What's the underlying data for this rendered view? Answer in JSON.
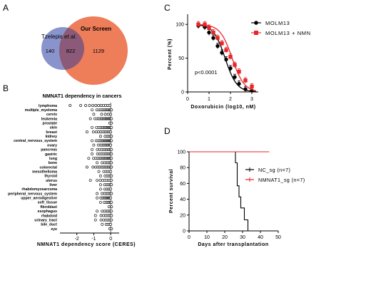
{
  "panels": {
    "A": "A",
    "B": "B",
    "C": "C",
    "D": "D"
  },
  "chart_data": [
    {
      "type": "venn",
      "sets": [
        {
          "name": "Tzelepis et al.",
          "name_plain": "Tzelepis ",
          "name_italic": "et al.",
          "color": "#8a94cc"
        },
        {
          "name": "Our Screen",
          "color": "#ee7d5a"
        }
      ],
      "only_first": "140",
      "overlap": "822",
      "only_second": "1129"
    },
    {
      "type": "scatter",
      "title": "NMNAT1 dependency in cancers",
      "xlabel": "NMNAT1 dependency score (CERES)",
      "xlim": [
        -3,
        0.5
      ],
      "xticks": [
        "-2",
        "-1",
        "0"
      ],
      "categories": [
        "lymphoma",
        "multiple_myeloma",
        "cervix",
        "leukemia",
        "prostate",
        "skin",
        "breast",
        "kidney",
        "central_nervous_system",
        "ovary",
        "pancreas",
        "gastric",
        "lung",
        "bone",
        "colorectal",
        "mesothelioma",
        "thyroid",
        "uterus",
        "liver",
        "rhabdomyosarcoma",
        "peripheral_nervous_system",
        "upper_aerodigestive",
        "soft_tissue",
        "fibroblast",
        "esophagus",
        "rhabdoid",
        "urinary_tract",
        "bile_duct",
        "eye"
      ],
      "min_score": [
        -2.4,
        -1.1,
        -1.0,
        -1.2,
        -0.05,
        -1.1,
        -1.4,
        -0.6,
        -1.1,
        -1.0,
        -1.1,
        -1.1,
        -1.3,
        -0.8,
        -1.4,
        -0.7,
        -0.6,
        -1.2,
        -0.6,
        -0.6,
        -0.8,
        -0.8,
        -0.6,
        -0.1,
        -0.8,
        -0.9,
        -0.9,
        -0.5,
        -0.05
      ],
      "max_score": [
        -0.05,
        0.05,
        0.0,
        0.05,
        0.05,
        0.05,
        0.0,
        0.05,
        0.05,
        0.0,
        0.05,
        0.05,
        0.05,
        0.05,
        0.05,
        0.0,
        0.05,
        0.05,
        0.05,
        0.0,
        0.05,
        0.0,
        0.05,
        0.05,
        0.05,
        0.05,
        0.05,
        0.0,
        0.05
      ],
      "points_per_category": [
        12,
        14,
        5,
        18,
        2,
        16,
        12,
        6,
        18,
        12,
        12,
        11,
        18,
        8,
        14,
        6,
        6,
        9,
        7,
        6,
        8,
        12,
        8,
        2,
        8,
        8,
        8,
        5,
        2
      ],
      "reference_x": 0
    },
    {
      "type": "line",
      "xlabel": "Doxorubicin (log10, nM)",
      "ylabel": "Percent (%)",
      "xlim": [
        0,
        3.3
      ],
      "ylim": [
        0,
        115
      ],
      "xticks": [
        "0",
        "1",
        "2",
        "3"
      ],
      "yticks": [
        "0",
        "50",
        "100"
      ],
      "annotation": "p<0.0001",
      "x": [
        0.5,
        0.8,
        1.0,
        1.2,
        1.4,
        1.6,
        1.8,
        2.0,
        2.2,
        2.4,
        2.7,
        3.0
      ],
      "series": [
        {
          "name": "MOLM13",
          "color": "#000000",
          "marker": "circle",
          "values": [
            98,
            96,
            88,
            80,
            68,
            58,
            48,
            35,
            22,
            12,
            4,
            2
          ],
          "ic50": 1.75,
          "hill": 1.6
        },
        {
          "name": "MOLM13 + NMN",
          "color": "#e8262a",
          "marker": "square",
          "values": [
            100,
            100,
            95,
            88,
            80,
            72,
            62,
            52,
            40,
            30,
            17,
            8
          ],
          "ic50": 2.08,
          "hill": 1.55
        }
      ]
    },
    {
      "type": "survival",
      "xlabel": "Days after transplantation",
      "ylabel": "Percent survival",
      "xlim": [
        0,
        50
      ],
      "ylim": [
        0,
        100
      ],
      "xticks": [
        "0",
        "10",
        "20",
        "30",
        "40",
        "50"
      ],
      "yticks": [
        "0",
        "20",
        "40",
        "60",
        "80",
        "100"
      ],
      "series": [
        {
          "name": "NC_sg (n=7)",
          "color": "#000000",
          "steps": [
            [
              0,
              100
            ],
            [
              26,
              100
            ],
            [
              26,
              86
            ],
            [
              27,
              86
            ],
            [
              27,
              57
            ],
            [
              28,
              57
            ],
            [
              28,
              43
            ],
            [
              29,
              43
            ],
            [
              29,
              29
            ],
            [
              31,
              29
            ],
            [
              31,
              14
            ],
            [
              33,
              14
            ],
            [
              33,
              0
            ]
          ]
        },
        {
          "name": "NMNAT1_sg (n=7)",
          "color": "#e8262a",
          "steps": [
            [
              0,
              100
            ],
            [
              45,
              100
            ]
          ]
        }
      ]
    }
  ]
}
